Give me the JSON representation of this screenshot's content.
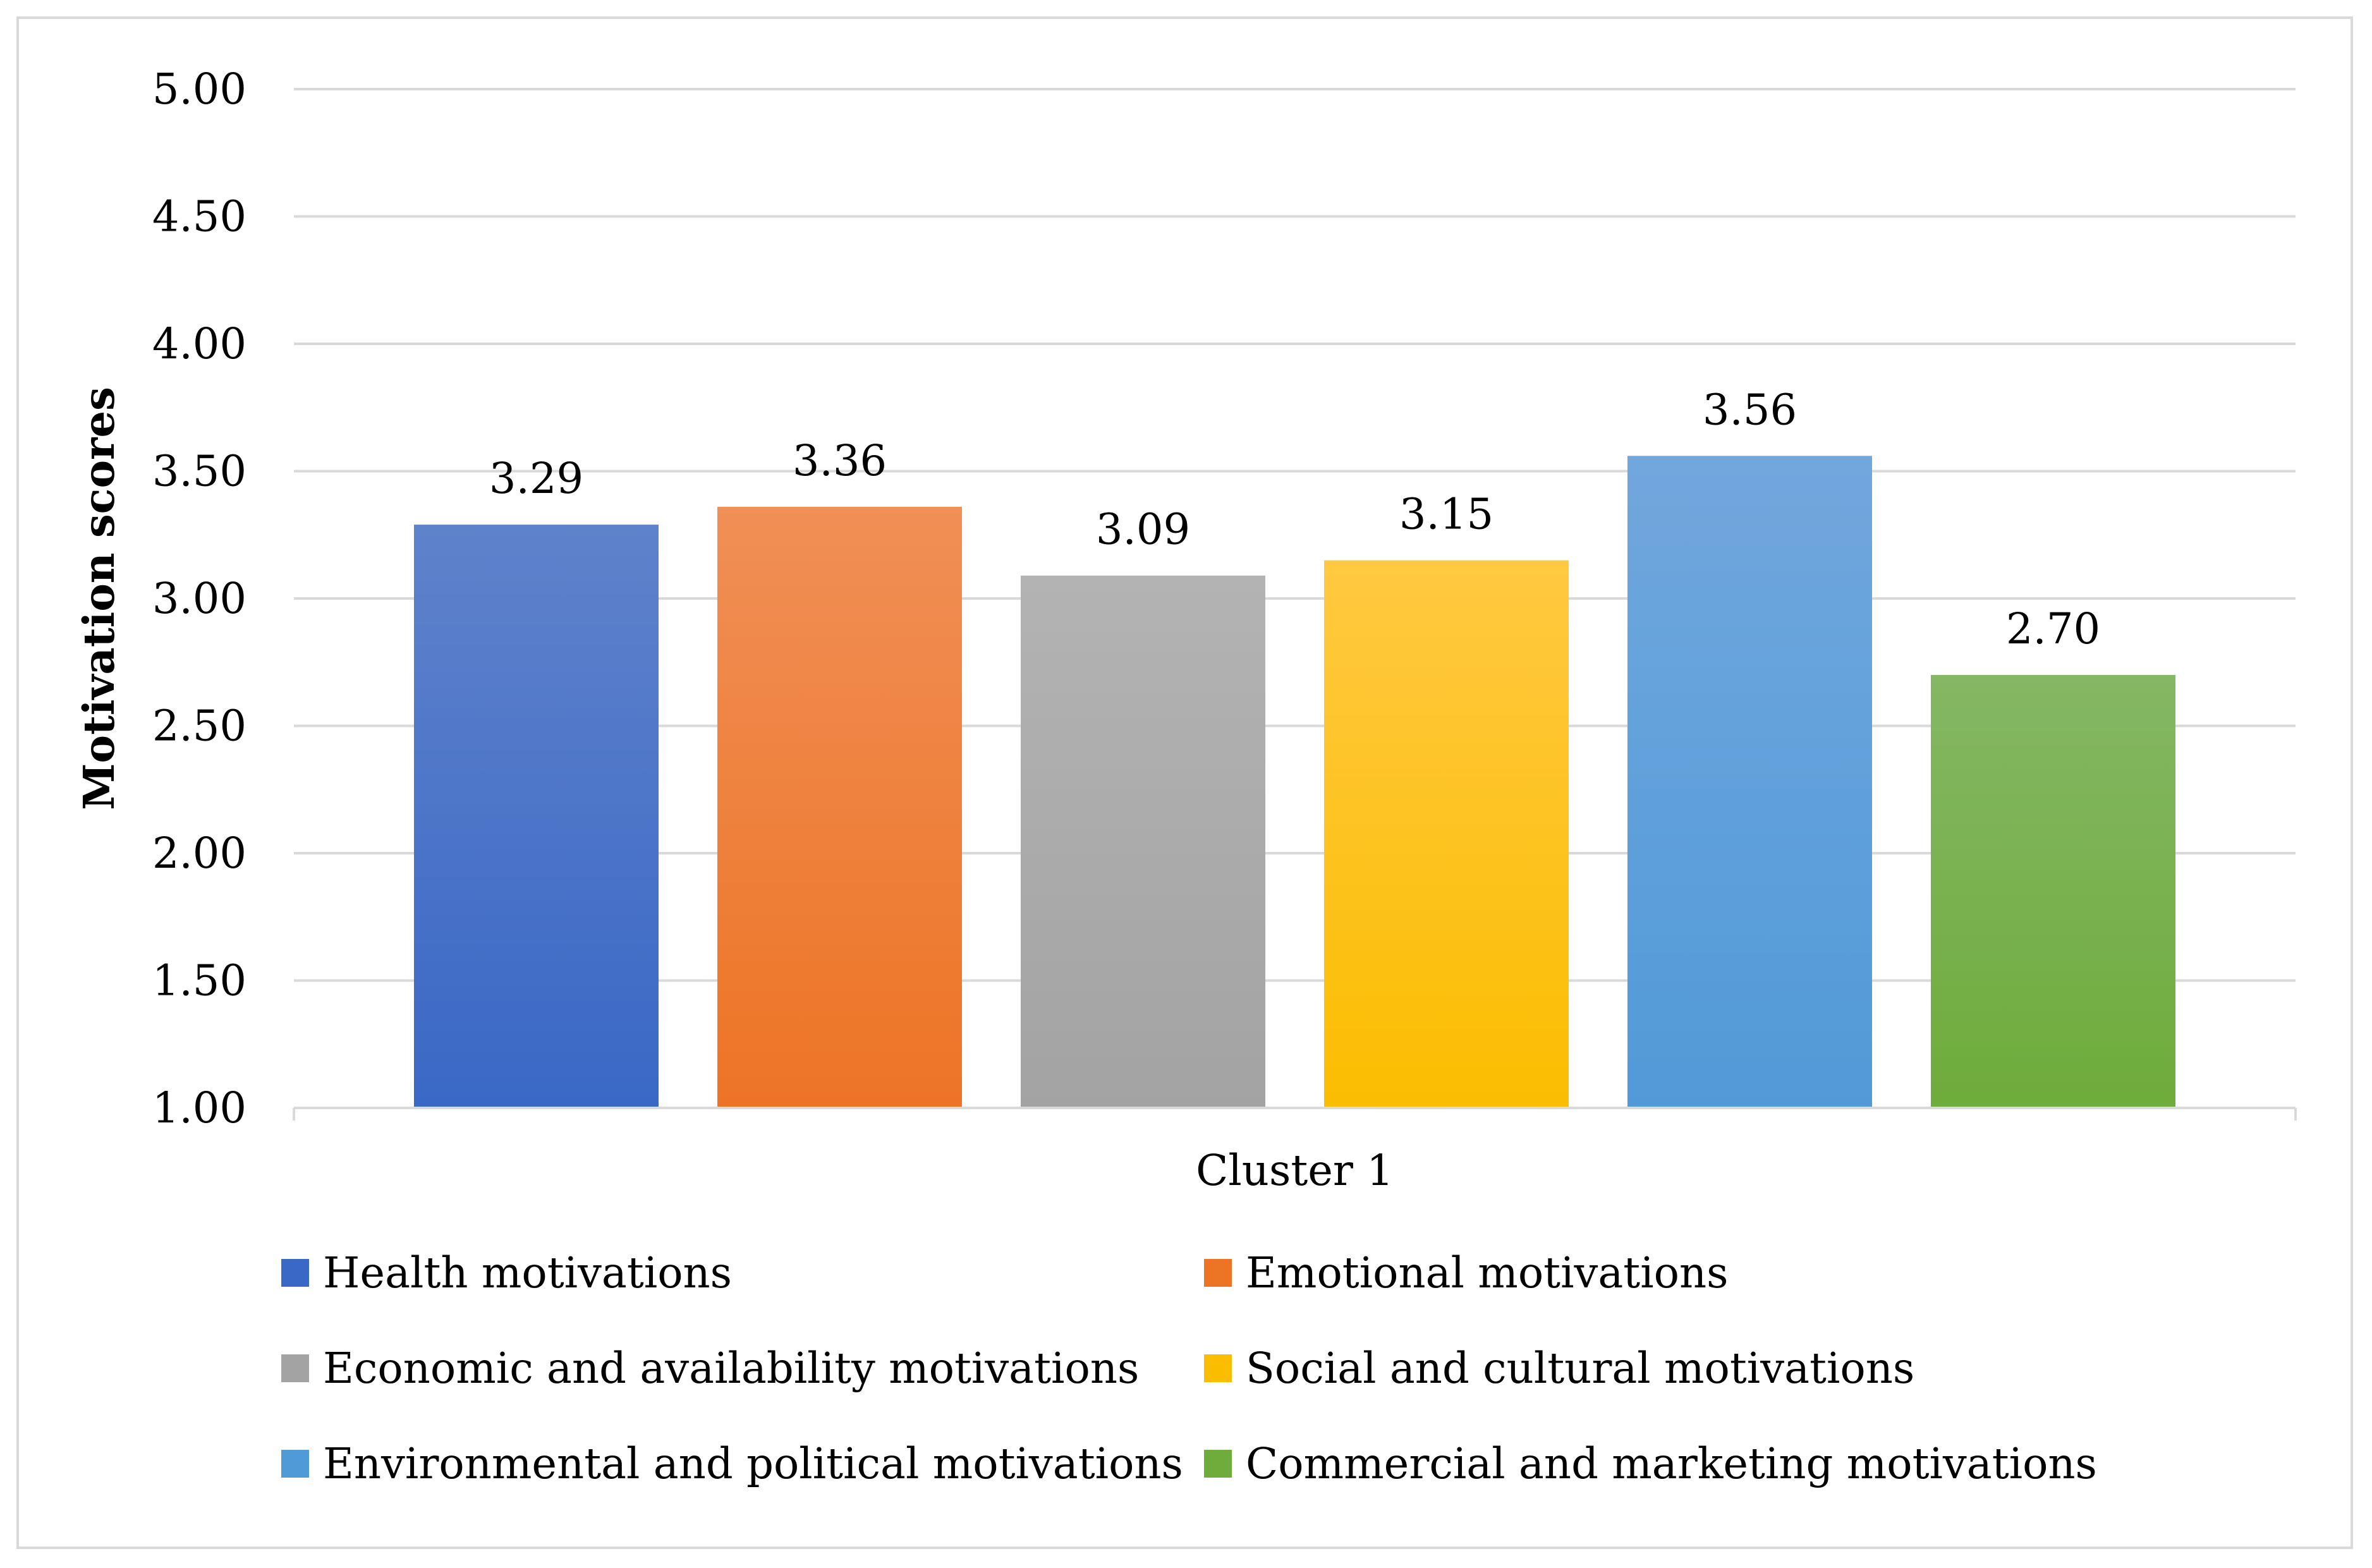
{
  "chart_data": {
    "type": "bar",
    "title": "",
    "xlabel": "",
    "ylabel": "Motivation scores",
    "categories": [
      "Cluster 1"
    ],
    "ylim": [
      1.0,
      5.0
    ],
    "yticks": [
      "1.00",
      "1.50",
      "2.00",
      "2.50",
      "3.00",
      "3.50",
      "4.00",
      "4.50",
      "5.00"
    ],
    "grid": true,
    "legend_position": "bottom",
    "series": [
      {
        "name": "Health motivations",
        "values": [
          3.29
        ],
        "label": "3.29",
        "color": "#3a68c6",
        "color_light": "#5f82cb"
      },
      {
        "name": "Emotional motivations",
        "values": [
          3.36
        ],
        "label": "3.36",
        "color": "#ed7425",
        "color_light": "#f08f56"
      },
      {
        "name": "Economic and availability motivations",
        "values": [
          3.09
        ],
        "label": "3.09",
        "color": "#a3a3a3",
        "color_light": "#b3b3b3"
      },
      {
        "name": "Social and cultural motivations",
        "values": [
          3.15
        ],
        "label": "3.15",
        "color": "#fbbd00",
        "color_light": "#ffc941"
      },
      {
        "name": "Environmental and political motivations",
        "values": [
          3.56
        ],
        "label": "3.56",
        "color": "#519ad8",
        "color_light": "#71a7dd"
      },
      {
        "name": "Commercial and marketing motivations",
        "values": [
          2.7
        ],
        "label": "2.70",
        "color": "#6eac3b",
        "color_light": "#85b764"
      }
    ]
  }
}
